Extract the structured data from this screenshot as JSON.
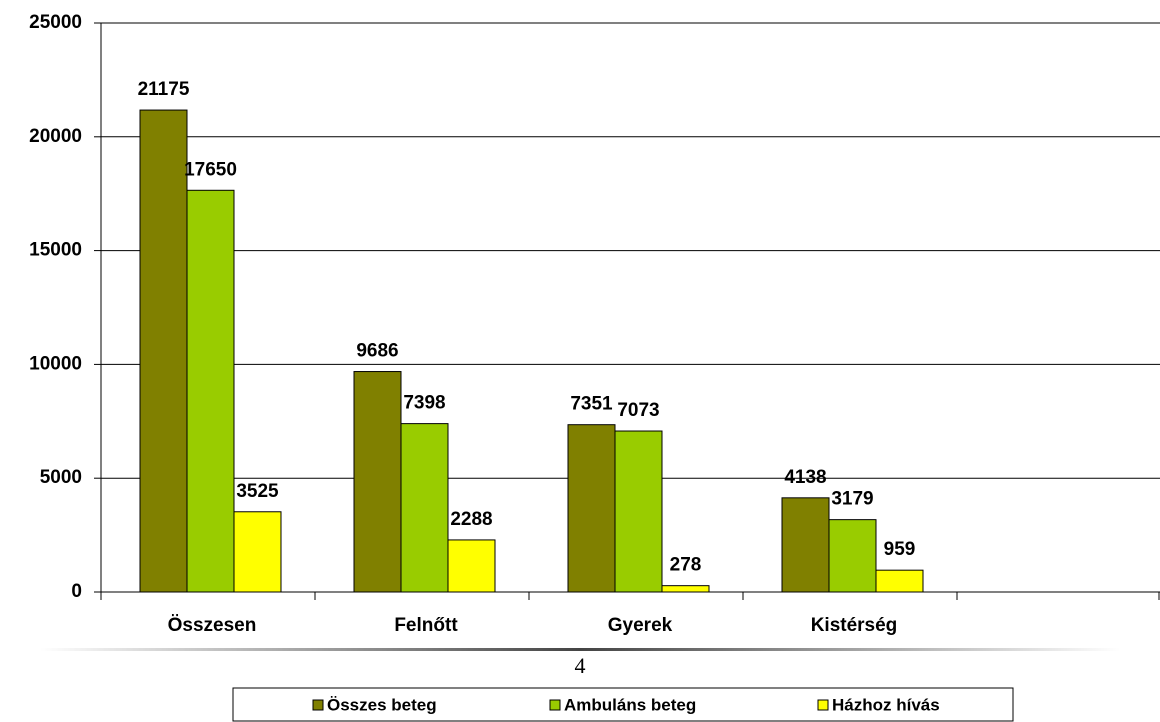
{
  "chart_data": {
    "type": "bar",
    "categories": [
      "Összesen",
      "Felnőtt",
      "Gyerek",
      "Kistérség",
      null
    ],
    "series": [
      {
        "name": "Összes beteg",
        "color": "#808000",
        "values": [
          21175,
          9686,
          7351,
          4138,
          null
        ]
      },
      {
        "name": "Ambuláns beteg",
        "color": "#99cc00",
        "values": [
          17650,
          7398,
          7073,
          3179,
          null
        ]
      },
      {
        "name": "Házhoz hívás",
        "color": "#ffff00",
        "values": [
          3525,
          2288,
          278,
          959,
          null
        ]
      }
    ],
    "ylim": [
      0,
      25000
    ],
    "yticks": [
      0,
      5000,
      10000,
      15000,
      20000,
      25000
    ],
    "grid": true,
    "legend": "bottom"
  },
  "page_number": "4"
}
